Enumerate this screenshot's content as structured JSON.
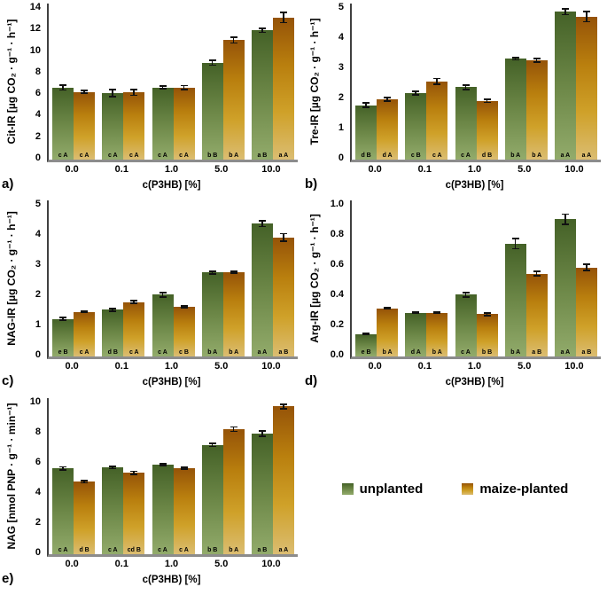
{
  "legend": {
    "items": [
      {
        "label": "unplanted",
        "color": "#4c722c"
      },
      {
        "label": "maize-planted",
        "color": "#a6700b"
      }
    ]
  },
  "colors": {
    "unplanted_gradient": [
      "#446127",
      "#6c8747",
      "#92ab6b"
    ],
    "maize_gradient": [
      "#955308",
      "#b97f0e",
      "#cfa129",
      "#dbbd72"
    ],
    "axis_line": "#404040",
    "baseline": "#8c8c8c",
    "text": "#000000"
  },
  "chart_data": [
    {
      "id": "a",
      "panel_label": "a)",
      "type": "bar",
      "ylabel": "Cit-IR [µg CO₂ · g⁻¹ · h⁻¹]",
      "xlabel": "c(P3HB) [%]",
      "ylim": [
        0,
        14
      ],
      "ytick_values": [
        0,
        2,
        4,
        6,
        8,
        10,
        12,
        14
      ],
      "ytick_labels": [
        "0",
        "2",
        "4",
        "6",
        "8",
        "10",
        "12",
        "14"
      ],
      "categories": [
        "0.0",
        "0.1",
        "1.0",
        "5.0",
        "10.0"
      ],
      "grid": false,
      "legend_position": "none",
      "series": [
        {
          "name": "unplanted",
          "values": [
            6.7,
            6.2,
            6.7,
            9.0,
            12.0
          ],
          "errors": [
            0.3,
            0.4,
            0.2,
            0.3,
            0.25
          ],
          "letters": [
            "c A",
            "c A",
            "c A",
            "b B",
            "a B"
          ]
        },
        {
          "name": "maize-planted",
          "values": [
            6.3,
            6.25,
            6.7,
            11.1,
            13.2
          ],
          "errors": [
            0.2,
            0.35,
            0.25,
            0.35,
            0.55
          ],
          "letters": [
            "c A",
            "c A",
            "c A",
            "b A",
            "a A"
          ]
        }
      ]
    },
    {
      "id": "b",
      "panel_label": "b)",
      "type": "bar",
      "ylabel": "Tre-IR [µg CO₂ · g⁻¹ · h⁻¹]",
      "xlabel": "c(P3HB) [%]",
      "ylim": [
        0,
        5
      ],
      "ytick_values": [
        0,
        1,
        2,
        3,
        4,
        5
      ],
      "ytick_labels": [
        "0",
        "1",
        "2",
        "3",
        "4",
        "5"
      ],
      "categories": [
        "0.0",
        "0.1",
        "1.0",
        "5.0",
        "10.0"
      ],
      "grid": false,
      "legend_position": "none",
      "series": [
        {
          "name": "unplanted",
          "values": [
            1.8,
            2.2,
            2.4,
            3.35,
            4.9
          ],
          "errors": [
            0.1,
            0.08,
            0.1,
            0.07,
            0.12
          ],
          "letters": [
            "d B",
            "c B",
            "c A",
            "b A",
            "a A"
          ]
        },
        {
          "name": "maize-planted",
          "values": [
            2.0,
            2.6,
            1.95,
            3.3,
            4.75
          ],
          "errors": [
            0.08,
            0.12,
            0.08,
            0.08,
            0.2
          ],
          "letters": [
            "d A",
            "c A",
            "d B",
            "b A",
            "a A"
          ]
        }
      ]
    },
    {
      "id": "c",
      "panel_label": "c)",
      "type": "bar",
      "ylabel": "NAG-IR [µg CO₂ · g⁻¹ · h⁻¹]",
      "xlabel": "c(P3HB) [%]",
      "ylim": [
        0,
        5
      ],
      "ytick_values": [
        0,
        1,
        2,
        3,
        4,
        5
      ],
      "ytick_labels": [
        "0",
        "1",
        "2",
        "3",
        "4",
        "5"
      ],
      "categories": [
        "0.0",
        "0.1",
        "1.0",
        "5.0",
        "10.0"
      ],
      "grid": false,
      "legend_position": "none",
      "series": [
        {
          "name": "unplanted",
          "values": [
            1.25,
            1.55,
            2.05,
            2.78,
            4.4
          ],
          "errors": [
            0.06,
            0.07,
            0.1,
            0.07,
            0.12
          ],
          "letters": [
            "e B",
            "d B",
            "c A",
            "b A",
            "a A"
          ]
        },
        {
          "name": "maize-planted",
          "values": [
            1.48,
            1.8,
            1.65,
            2.8,
            3.95
          ],
          "errors": [
            0.05,
            0.07,
            0.06,
            0.06,
            0.15
          ],
          "letters": [
            "c A",
            "c A",
            "c B",
            "b A",
            "a B"
          ]
        }
      ]
    },
    {
      "id": "d",
      "panel_label": "d)",
      "type": "bar",
      "ylabel": "Arg-IR [µg CO₂ · g⁻¹ · h⁻¹]",
      "xlabel": "c(P3HB) [%]",
      "ylim": [
        0,
        1.0
      ],
      "ytick_values": [
        0,
        0.2,
        0.4,
        0.6,
        0.8,
        1.0
      ],
      "ytick_labels": [
        "0.0",
        "0.2",
        "0.4",
        "0.6",
        "0.8",
        "1.0"
      ],
      "categories": [
        "0.0",
        "0.1",
        "1.0",
        "5.0",
        "10.0"
      ],
      "grid": false,
      "legend_position": "none",
      "series": [
        {
          "name": "unplanted",
          "values": [
            0.15,
            0.29,
            0.41,
            0.75,
            0.91
          ],
          "errors": [
            0.01,
            0.01,
            0.02,
            0.04,
            0.04
          ],
          "letters": [
            "e B",
            "d A",
            "c A",
            "b A",
            "a A"
          ]
        },
        {
          "name": "maize-planted",
          "values": [
            0.32,
            0.29,
            0.28,
            0.55,
            0.59
          ],
          "errors": [
            0.01,
            0.01,
            0.015,
            0.02,
            0.025
          ],
          "letters": [
            "b A",
            "b A",
            "b B",
            "a B",
            "a B"
          ]
        }
      ]
    },
    {
      "id": "e",
      "panel_label": "e)",
      "type": "bar",
      "ylabel": "NAG [nmol PNP · g⁻¹ · min⁻¹]",
      "xlabel": "c(P3HB) [%]",
      "ylim": [
        0,
        10
      ],
      "ytick_values": [
        0,
        2,
        4,
        6,
        8,
        10
      ],
      "ytick_labels": [
        "0",
        "2",
        "4",
        "6",
        "8",
        "10"
      ],
      "categories": [
        "0.0",
        "0.1",
        "1.0",
        "5.0",
        "10.0"
      ],
      "grid": false,
      "legend_position": "none",
      "series": [
        {
          "name": "unplanted",
          "values": [
            5.7,
            5.75,
            5.95,
            7.25,
            8.0
          ],
          "errors": [
            0.15,
            0.12,
            0.12,
            0.15,
            0.25
          ],
          "letters": [
            "c A",
            "c A",
            "c A",
            "b B",
            "a B"
          ]
        },
        {
          "name": "maize-planted",
          "values": [
            4.8,
            5.4,
            5.7,
            8.3,
            9.8
          ],
          "errors": [
            0.12,
            0.15,
            0.1,
            0.2,
            0.2
          ],
          "letters": [
            "d B",
            "cd B",
            "c A",
            "b A",
            "a A"
          ]
        }
      ]
    }
  ]
}
